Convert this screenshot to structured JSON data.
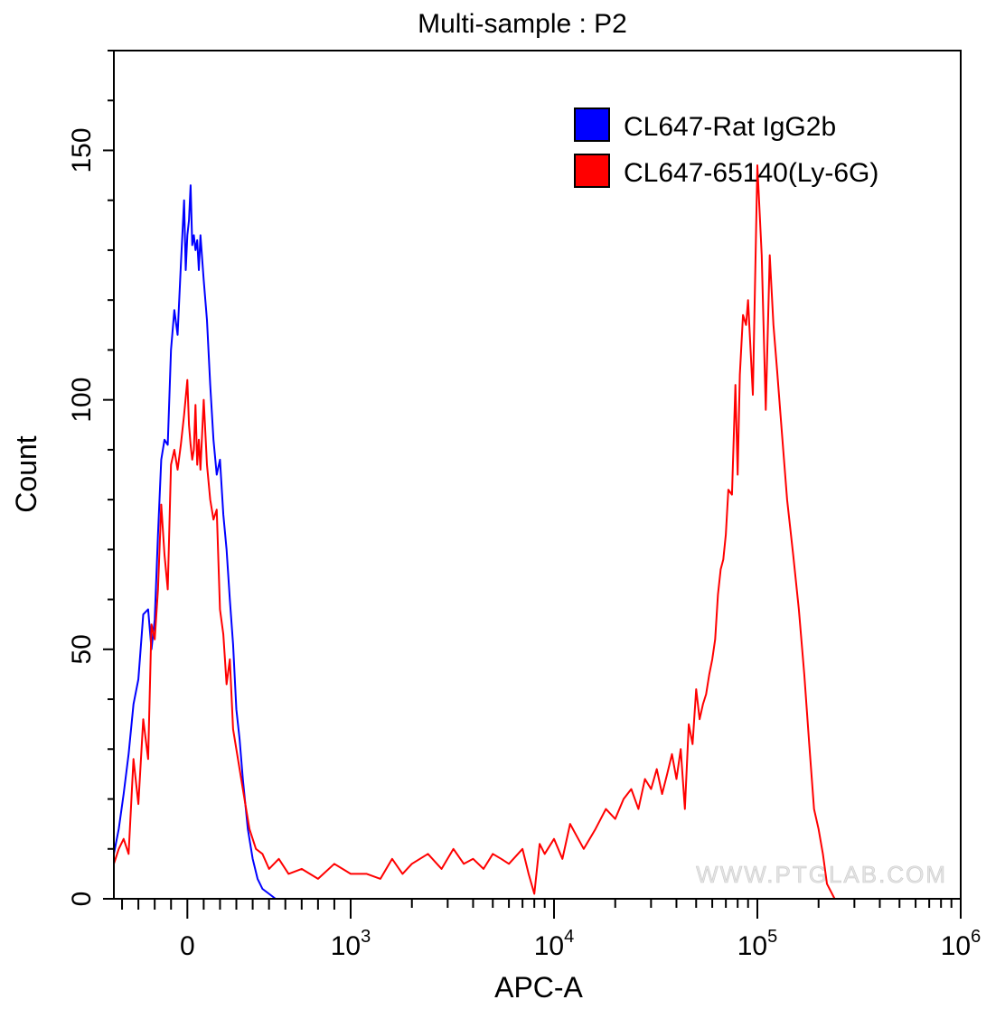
{
  "chart_data": {
    "type": "line",
    "title": "Multi-sample : P2",
    "xlabel": "APC-A",
    "ylabel": "Count",
    "ylim": [
      0,
      170
    ],
    "y_ticks": [
      {
        "value": 0,
        "label": "0"
      },
      {
        "value": 50,
        "label": "50"
      },
      {
        "value": 100,
        "label": "100"
      },
      {
        "value": 150,
        "label": "150"
      }
    ],
    "x_scale": "biexponential",
    "x_ticks": [
      {
        "value": 0,
        "base": "0",
        "exp": ""
      },
      {
        "value": 1000,
        "base": "10",
        "exp": "3"
      },
      {
        "value": 10000,
        "base": "10",
        "exp": "4"
      },
      {
        "value": 100000,
        "base": "10",
        "exp": "5"
      },
      {
        "value": 1000000,
        "base": "10",
        "exp": "6"
      }
    ],
    "legend_position": "top-right",
    "grid": false,
    "series": [
      {
        "name": "CL647-Rat IgG2b",
        "color": "#0000ff",
        "x": [
          -450,
          -420,
          -390,
          -360,
          -330,
          -300,
          -270,
          -240,
          -220,
          -200,
          -180,
          -160,
          -140,
          -120,
          -100,
          -80,
          -60,
          -40,
          -20,
          -10,
          0,
          10,
          20,
          30,
          40,
          50,
          60,
          70,
          80,
          100,
          120,
          140,
          160,
          180,
          200,
          220,
          240,
          260,
          280,
          300,
          320,
          340,
          370,
          400,
          430,
          460,
          500,
          540,
          580,
          620,
          660,
          700,
          800,
          900,
          1000
        ],
        "y": [
          9,
          14,
          21,
          29,
          39,
          44,
          57,
          58,
          50,
          56,
          73,
          88,
          92,
          91,
          110,
          118,
          113,
          127,
          140,
          126,
          133,
          136,
          143,
          131,
          133,
          130,
          132,
          126,
          133,
          124,
          116,
          103,
          92,
          85,
          88,
          77,
          70,
          60,
          51,
          38,
          32,
          24,
          14,
          8,
          4,
          2,
          1,
          0,
          0,
          0,
          0,
          0,
          0,
          0,
          0
        ]
      },
      {
        "name": "CL647-65140(Ly-6G)",
        "color": "#ff0000",
        "x": [
          -450,
          -420,
          -390,
          -360,
          -330,
          -300,
          -270,
          -240,
          -220,
          -200,
          -180,
          -160,
          -140,
          -120,
          -100,
          -80,
          -60,
          -40,
          -20,
          0,
          10,
          20,
          30,
          40,
          50,
          60,
          70,
          80,
          100,
          120,
          140,
          160,
          180,
          200,
          220,
          240,
          260,
          280,
          300,
          340,
          380,
          420,
          460,
          500,
          560,
          620,
          700,
          800,
          900,
          1000,
          1200,
          1400,
          1600,
          1800,
          2000,
          2400,
          2800,
          3200,
          3600,
          4000,
          4500,
          5000,
          5500,
          6000,
          7000,
          7500,
          8000,
          8500,
          9000,
          10000,
          11000,
          12000,
          14000,
          16000,
          18000,
          20000,
          22000,
          24000,
          26000,
          28000,
          30000,
          32000,
          34000,
          36000,
          38000,
          40000,
          42000,
          44000,
          46000,
          48000,
          50000,
          52000,
          54000,
          56000,
          58000,
          60000,
          62000,
          64000,
          66000,
          68000,
          70000,
          72000,
          75000,
          78000,
          80000,
          82000,
          85000,
          88000,
          90000,
          95000,
          100000,
          105000,
          110000,
          115000,
          120000,
          125000,
          130000,
          140000,
          150000,
          160000,
          170000,
          180000,
          190000,
          200000,
          210000,
          220000,
          240000,
          250000
        ],
        "y": [
          7,
          10,
          12,
          9,
          28,
          19,
          36,
          28,
          55,
          52,
          62,
          79,
          69,
          62,
          87,
          90,
          86,
          91,
          97,
          104,
          95,
          91,
          88,
          90,
          99,
          87,
          92,
          86,
          100,
          87,
          80,
          76,
          78,
          58,
          53,
          43,
          48,
          34,
          30,
          22,
          14,
          10,
          9,
          6,
          8,
          5,
          6,
          4,
          7,
          5,
          5,
          4,
          8,
          5,
          7,
          9,
          6,
          10,
          7,
          8,
          6,
          9,
          8,
          7,
          10,
          5,
          1,
          11,
          9,
          12,
          8,
          15,
          10,
          14,
          18,
          16,
          20,
          22,
          18,
          24,
          22,
          26,
          21,
          25,
          29,
          24,
          30,
          18,
          35,
          31,
          42,
          36,
          39,
          41,
          45,
          48,
          52,
          61,
          66,
          68,
          73,
          82,
          81,
          103,
          85,
          105,
          117,
          115,
          120,
          101,
          147,
          129,
          98,
          129,
          115,
          106,
          97,
          80,
          69,
          58,
          45,
          31,
          18,
          14,
          9,
          3,
          0,
          0
        ]
      }
    ],
    "watermark": "WWW.PTGLAB.COM"
  }
}
